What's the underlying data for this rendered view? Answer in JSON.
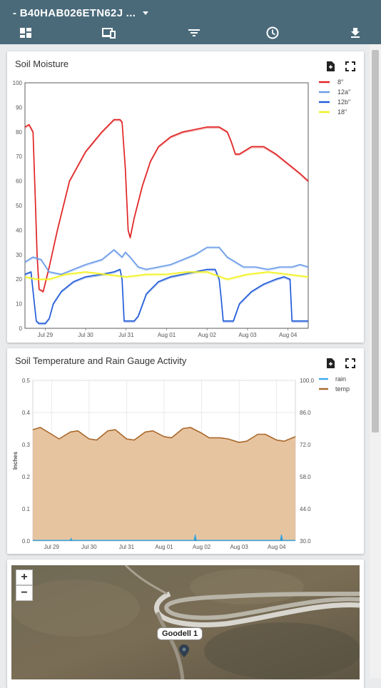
{
  "header": {
    "title": "- B40HAB026ETN62J ...",
    "nav": [
      {
        "icon": "dashboard-icon"
      },
      {
        "icon": "devices-icon"
      },
      {
        "icon": "filter-icon"
      },
      {
        "icon": "clock-icon"
      },
      {
        "icon": "download-icon"
      }
    ]
  },
  "soil_moisture": {
    "title": "Soil Moisture",
    "tools": {
      "save_icon": "save-file-icon",
      "expand_icon": "fullscreen-icon"
    }
  },
  "soil_temp": {
    "title": "Soil Temperature and Rain Gauge Activity",
    "tools": {
      "save_icon": "save-file-icon",
      "expand_icon": "fullscreen-icon"
    }
  },
  "map": {
    "zoom_in": "+",
    "zoom_out": "−",
    "marker_label": "Goodell 1"
  },
  "chart_data": [
    {
      "type": "line",
      "title": "Soil Moisture",
      "ylim": [
        0,
        100
      ],
      "yticks": [
        0,
        10,
        20,
        30,
        40,
        50,
        60,
        70,
        80,
        90,
        100
      ],
      "xticks": [
        "Jul 29",
        "Jul 30",
        "Jul 31",
        "Aug 01",
        "Aug 02",
        "Aug 03",
        "Aug 04"
      ],
      "xtick_pos": [
        0.5,
        1.5,
        2.5,
        3.5,
        4.5,
        5.5,
        6.5
      ],
      "xlim": [
        0,
        7
      ],
      "legend": "top-right",
      "series": [
        {
          "name": "8\"",
          "color": "#e02020",
          "x": [
            0,
            0.1,
            0.2,
            0.25,
            0.3,
            0.35,
            0.45,
            0.6,
            0.8,
            1.1,
            1.5,
            1.9,
            2.2,
            2.35,
            2.4,
            2.48,
            2.55,
            2.6,
            2.7,
            2.9,
            3.1,
            3.3,
            3.6,
            3.9,
            4.2,
            4.5,
            4.8,
            5.0,
            5.1,
            5.2,
            5.3,
            5.6,
            5.9,
            6.2,
            6.5,
            6.8,
            7.0
          ],
          "y": [
            82,
            83,
            80,
            55,
            30,
            16,
            15,
            25,
            40,
            60,
            72,
            80,
            85,
            85,
            84,
            65,
            40,
            37,
            45,
            58,
            68,
            74,
            78,
            80,
            81,
            82,
            82,
            80,
            76,
            71,
            71,
            74,
            74,
            71,
            67,
            63,
            60
          ]
        },
        {
          "name": "12a\"",
          "color": "#6a9be8",
          "x": [
            0,
            0.2,
            0.4,
            0.6,
            0.9,
            1.2,
            1.5,
            1.9,
            2.2,
            2.4,
            2.48,
            2.6,
            2.8,
            3.0,
            3.3,
            3.6,
            3.9,
            4.2,
            4.5,
            4.8,
            5.0,
            5.2,
            5.4,
            5.7,
            6.0,
            6.3,
            6.6,
            6.8,
            7.0
          ],
          "y": [
            27,
            29,
            28,
            23,
            22,
            24,
            26,
            28,
            32,
            29,
            31,
            29,
            25,
            24,
            25,
            26,
            28,
            30,
            33,
            33,
            29,
            27,
            25,
            25,
            24,
            25,
            25,
            26,
            25
          ]
        },
        {
          "name": "12b\"",
          "color": "#1f5ad8",
          "x": [
            0,
            0.15,
            0.22,
            0.28,
            0.35,
            0.5,
            0.6,
            0.7,
            0.9,
            1.2,
            1.5,
            1.9,
            2.2,
            2.35,
            2.4,
            2.45,
            2.55,
            2.7,
            2.8,
            3.0,
            3.3,
            3.6,
            3.9,
            4.2,
            4.5,
            4.7,
            4.8,
            4.85,
            4.9,
            5.0,
            5.15,
            5.3,
            5.6,
            5.9,
            6.2,
            6.4,
            6.55,
            6.6,
            6.7,
            7.0
          ],
          "y": [
            22,
            23,
            12,
            3,
            2,
            2,
            4,
            10,
            15,
            19,
            21,
            22,
            23,
            24,
            20,
            3,
            3,
            3,
            5,
            14,
            19,
            21,
            22,
            23,
            24,
            24,
            20,
            12,
            3,
            3,
            3,
            10,
            15,
            18,
            20,
            21,
            20,
            3,
            3,
            3
          ]
        },
        {
          "name": "18\"",
          "color": "#f2f21e",
          "x": [
            0,
            0.3,
            0.6,
            1.0,
            1.5,
            2.0,
            2.5,
            3.0,
            3.5,
            4.0,
            4.5,
            5.0,
            5.5,
            6.0,
            6.5,
            7.0
          ],
          "y": [
            21,
            20,
            20,
            22,
            23,
            22,
            21,
            22,
            22,
            23,
            23,
            20,
            22,
            23,
            22,
            21
          ]
        }
      ]
    },
    {
      "type": "area",
      "title": "Soil Temperature and Rain Gauge Activity",
      "ylabel": "Inches",
      "ylim": [
        0,
        0.5
      ],
      "yticks": [
        0.0,
        0.1,
        0.2,
        0.3,
        0.4,
        0.5
      ],
      "ylim_right": [
        30,
        100
      ],
      "yticks_right": [
        30.0,
        44.0,
        58.0,
        72.0,
        86.0,
        100.0
      ],
      "xticks": [
        "Jul 29",
        "Jul 30",
        "Jul 31",
        "Aug 01",
        "Aug 02",
        "Aug 03",
        "Aug 04"
      ],
      "xtick_pos": [
        0.5,
        1.5,
        2.5,
        3.5,
        4.5,
        5.5,
        6.5
      ],
      "xlim": [
        0,
        7
      ],
      "legend": "top-right",
      "series": [
        {
          "name": "rain",
          "color": "#3aa8e8",
          "axis": "left",
          "x": [
            0,
            1.0,
            1.02,
            1.05,
            4.3,
            4.33,
            4.36,
            6.6,
            6.63,
            6.66,
            7.0
          ],
          "y": [
            0.002,
            0.002,
            0.008,
            0.002,
            0.002,
            0.02,
            0.002,
            0.002,
            0.02,
            0.002,
            0.002
          ]
        },
        {
          "name": "temp",
          "color": "#a9682a",
          "fill": "#e5bf98",
          "axis": "right",
          "x": [
            0,
            0.2,
            0.5,
            0.7,
            1.0,
            1.2,
            1.5,
            1.7,
            2.0,
            2.2,
            2.5,
            2.7,
            3.0,
            3.2,
            3.5,
            3.7,
            4.0,
            4.2,
            4.5,
            4.7,
            5.0,
            5.2,
            5.5,
            5.7,
            6.0,
            6.2,
            6.5,
            6.7,
            7.0
          ],
          "y": [
            78.5,
            79.5,
            76.5,
            74.5,
            77.5,
            78,
            74.5,
            74,
            78,
            78.5,
            74.5,
            74,
            77.5,
            78,
            75.5,
            75,
            79,
            79.5,
            77,
            75,
            75,
            74.5,
            73,
            73.5,
            76.5,
            76.5,
            74,
            73.5,
            75.5
          ]
        }
      ]
    }
  ]
}
